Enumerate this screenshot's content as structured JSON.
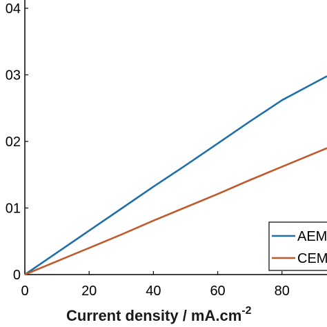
{
  "chart_data": {
    "type": "line",
    "xlabel": "Current density / mA.cm",
    "xlabel_superscript": "-2",
    "ylabel": "",
    "xlim": [
      0,
      94
    ],
    "ylim": [
      0,
      0.04
    ],
    "x_ticks": [
      0,
      20,
      40,
      60,
      80
    ],
    "x_tick_labels": [
      "0",
      "20",
      "40",
      "60",
      "80"
    ],
    "y_ticks": [
      0,
      0.01,
      0.02,
      0.03,
      0.04
    ],
    "y_tick_labels": [
      "0",
      "01",
      "02",
      "03",
      "04"
    ],
    "grid": false,
    "legend_position": "bottom-right",
    "series": [
      {
        "name": "AEM",
        "color": "#1f6fa8",
        "x": [
          0,
          10,
          20,
          30,
          40,
          50,
          60,
          70,
          80,
          94
        ],
        "y": [
          0,
          0.0033,
          0.0066,
          0.0099,
          0.0132,
          0.0164,
          0.0197,
          0.023,
          0.0262,
          0.0298
        ]
      },
      {
        "name": "CEM",
        "color": "#c0592b",
        "x": [
          0,
          10,
          20,
          30,
          40,
          50,
          60,
          70,
          80,
          94
        ],
        "y": [
          0,
          0.002,
          0.004,
          0.006,
          0.0081,
          0.0101,
          0.0121,
          0.0142,
          0.0162,
          0.019
        ]
      }
    ]
  }
}
